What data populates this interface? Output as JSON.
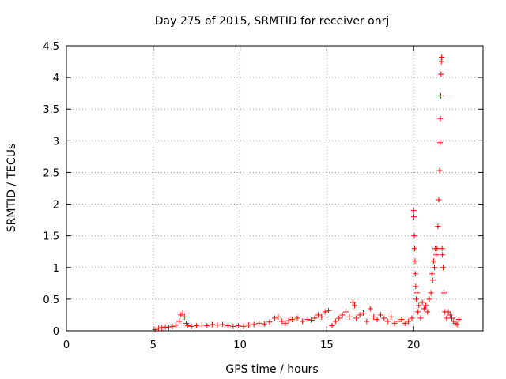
{
  "chart_data": {
    "type": "scatter",
    "title": "Day 275 of 2015, SRMTID for receiver onrj",
    "xlabel": "GPS time / hours",
    "ylabel": "SRMTID / TECUs",
    "xlim": [
      0,
      24
    ],
    "ylim": [
      0,
      4.5
    ],
    "xticks": [
      0,
      5,
      10,
      15,
      20
    ],
    "xtick_labels": [
      "0",
      "5",
      "10",
      "15",
      "20"
    ],
    "yticks": [
      0,
      0.5,
      1,
      1.5,
      2,
      2.5,
      3,
      3.5,
      4,
      4.5
    ],
    "ytick_labels": [
      "0",
      "0.5",
      "1",
      "1.5",
      "2",
      "2.5",
      "3",
      "3.5",
      "4",
      "4.5"
    ],
    "grid": true,
    "marker": "plus",
    "color": "#ff0000",
    "series": [
      {
        "name": "onrj",
        "x": [
          5.1,
          5.3,
          5.5,
          5.7,
          5.9,
          6.1,
          6.3,
          6.5,
          6.6,
          6.7,
          6.8,
          6.9,
          7.0,
          7.2,
          7.5,
          7.8,
          8.1,
          8.4,
          8.7,
          9.0,
          9.3,
          9.6,
          9.9,
          10.2,
          10.5,
          10.8,
          11.1,
          11.4,
          11.7,
          12.0,
          12.2,
          12.4,
          12.6,
          12.8,
          13.0,
          13.3,
          13.6,
          13.9,
          14.1,
          14.3,
          14.5,
          14.7,
          14.9,
          15.1,
          15.3,
          15.5,
          15.7,
          15.9,
          16.1,
          16.3,
          16.5,
          16.6,
          16.7,
          16.9,
          17.1,
          17.3,
          17.5,
          17.7,
          17.9,
          18.1,
          18.3,
          18.5,
          18.7,
          18.9,
          19.1,
          19.3,
          19.5,
          19.7,
          19.9,
          20.0,
          20.02,
          20.04,
          20.06,
          20.08,
          20.1,
          20.12,
          20.15,
          20.2,
          20.25,
          20.3,
          20.4,
          20.5,
          20.6,
          20.7,
          20.8,
          20.9,
          21.0,
          21.05,
          21.1,
          21.15,
          21.2,
          21.25,
          21.3,
          21.35,
          21.4,
          21.45,
          21.5,
          21.52,
          21.54,
          21.56,
          21.58,
          21.6,
          21.62,
          21.64,
          21.66,
          21.7,
          21.75,
          21.8,
          21.9,
          22.0,
          22.1,
          22.2,
          22.3,
          22.4,
          22.5,
          22.6
        ],
        "y": [
          0.02,
          0.04,
          0.05,
          0.06,
          0.05,
          0.07,
          0.09,
          0.15,
          0.25,
          0.28,
          0.22,
          0.12,
          0.08,
          0.07,
          0.08,
          0.09,
          0.08,
          0.1,
          0.09,
          0.1,
          0.08,
          0.07,
          0.08,
          0.07,
          0.09,
          0.1,
          0.12,
          0.11,
          0.14,
          0.2,
          0.22,
          0.15,
          0.12,
          0.16,
          0.18,
          0.2,
          0.15,
          0.18,
          0.17,
          0.2,
          0.25,
          0.22,
          0.3,
          0.32,
          0.08,
          0.15,
          0.2,
          0.25,
          0.3,
          0.22,
          0.45,
          0.4,
          0.2,
          0.25,
          0.28,
          0.15,
          0.35,
          0.22,
          0.18,
          0.25,
          0.2,
          0.15,
          0.22,
          0.12,
          0.15,
          0.18,
          0.12,
          0.15,
          0.2,
          1.9,
          1.8,
          1.5,
          1.3,
          1.1,
          0.9,
          0.7,
          0.5,
          0.6,
          0.3,
          0.4,
          0.2,
          0.45,
          0.35,
          0.4,
          0.3,
          0.5,
          0.6,
          0.9,
          0.8,
          1.1,
          1.0,
          1.3,
          1.2,
          1.3,
          1.65,
          2.07,
          2.53,
          2.97,
          3.35,
          3.71,
          4.05,
          4.25,
          4.32,
          1.3,
          1.2,
          1.0,
          0.6,
          0.3,
          0.2,
          0.3,
          0.25,
          0.2,
          0.15,
          0.12,
          0.1,
          0.18
        ]
      }
    ]
  }
}
